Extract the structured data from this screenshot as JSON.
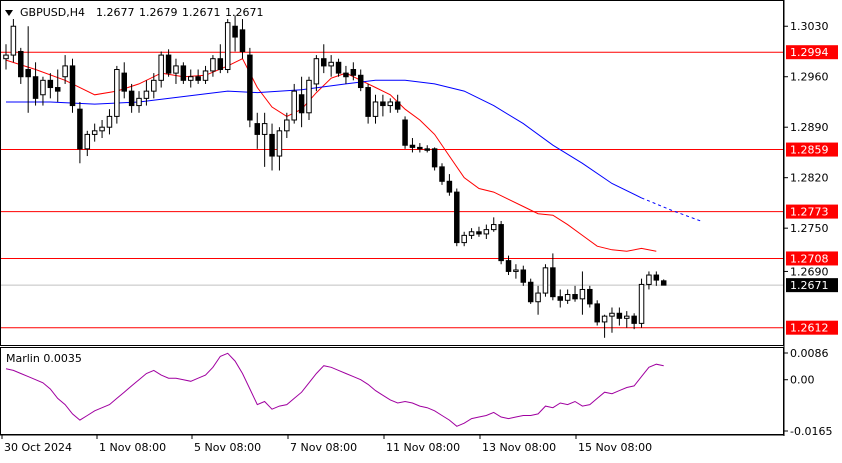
{
  "header": {
    "symbol": "GBPUSD,H4",
    "open": "1.2677",
    "high": "1.2679",
    "low": "1.2671",
    "close": "1.2671"
  },
  "indicator": {
    "name": "Marlin 0.0035"
  },
  "chart_data": {
    "type": "candlestick",
    "price_axis": {
      "range": [
        1.2588,
        1.3065
      ],
      "ticks": [
        "1.3030",
        "1.2960",
        "1.2890",
        "1.2820",
        "1.2750",
        "1.2690"
      ]
    },
    "levels": [
      {
        "value": "1.2994",
        "color": "#ff0000"
      },
      {
        "value": "1.2859",
        "color": "#ff0000"
      },
      {
        "value": "1.2773",
        "color": "#ff0000"
      },
      {
        "value": "1.2708",
        "color": "#ff0000"
      },
      {
        "value": "1.2612",
        "color": "#ff0000"
      }
    ],
    "current_price": "1.2671",
    "x_ticks": [
      "30 Oct 2024",
      "1 Nov 08:00",
      "5 Nov 08:00",
      "7 Nov 08:00",
      "11 Nov 08:00",
      "13 Nov 08:00",
      "15 Nov 08:00"
    ],
    "candles": [
      [
        1.2985,
        1.3005,
        1.297,
        1.299
      ],
      [
        1.299,
        1.304,
        1.298,
        1.303
      ],
      [
        1.2995,
        1.3,
        1.295,
        1.296
      ],
      [
        1.297,
        1.303,
        1.291,
        1.296
      ],
      [
        1.296,
        1.298,
        1.292,
        1.293
      ],
      [
        1.2935,
        1.296,
        1.292,
        1.2955
      ],
      [
        1.2955,
        1.2965,
        1.293,
        1.2945
      ],
      [
        1.2945,
        1.297,
        1.2925,
        1.294
      ],
      [
        1.296,
        1.299,
        1.295,
        1.2975
      ],
      [
        1.2975,
        1.2985,
        1.291,
        1.292
      ],
      [
        1.2915,
        1.2925,
        1.284,
        1.286
      ],
      [
        1.286,
        1.2885,
        1.285,
        1.288
      ],
      [
        1.288,
        1.2895,
        1.287,
        1.2885
      ],
      [
        1.2885,
        1.29,
        1.2875,
        1.289
      ],
      [
        1.289,
        1.2915,
        1.288,
        1.2905
      ],
      [
        1.2905,
        1.2975,
        1.2895,
        1.297
      ],
      [
        1.2965,
        1.298,
        1.293,
        1.294
      ],
      [
        1.294,
        1.295,
        1.291,
        1.292
      ],
      [
        1.292,
        1.294,
        1.291,
        1.293
      ],
      [
        1.293,
        1.2955,
        1.292,
        1.294
      ],
      [
        1.294,
        1.2965,
        1.293,
        1.2955
      ],
      [
        1.2955,
        1.2995,
        1.2945,
        1.299
      ],
      [
        1.299,
        1.2998,
        1.296,
        1.2965
      ],
      [
        1.2965,
        1.2985,
        1.295,
        1.2975
      ],
      [
        1.2975,
        1.298,
        1.295,
        1.2955
      ],
      [
        1.2955,
        1.297,
        1.2945,
        1.296
      ],
      [
        1.296,
        1.297,
        1.295,
        1.2955
      ],
      [
        1.2955,
        1.2975,
        1.295,
        1.2968
      ],
      [
        1.2968,
        1.299,
        1.296,
        1.2985
      ],
      [
        1.2985,
        1.3005,
        1.2965,
        1.297
      ],
      [
        1.297,
        1.304,
        1.2965,
        1.3035
      ],
      [
        1.303,
        1.3045,
        1.2995,
        1.3015
      ],
      [
        1.3025,
        1.304,
        1.2985,
        1.2995
      ],
      [
        1.299,
        1.3,
        1.289,
        1.29
      ],
      [
        1.2895,
        1.291,
        1.286,
        1.288
      ],
      [
        1.288,
        1.291,
        1.2835,
        1.2895
      ],
      [
        1.288,
        1.2895,
        1.283,
        1.285
      ],
      [
        1.285,
        1.289,
        1.283,
        1.2885
      ],
      [
        1.2885,
        1.291,
        1.2875,
        1.29
      ],
      [
        1.29,
        1.295,
        1.2895,
        1.294
      ],
      [
        1.2935,
        1.296,
        1.289,
        1.291
      ],
      [
        1.291,
        1.296,
        1.29,
        1.2955
      ],
      [
        1.295,
        1.299,
        1.294,
        1.2985
      ],
      [
        1.2985,
        1.3005,
        1.2965,
        1.2975
      ],
      [
        1.2975,
        1.299,
        1.296,
        1.298
      ],
      [
        1.298,
        1.2985,
        1.296,
        1.2965
      ],
      [
        1.2965,
        1.2975,
        1.295,
        1.296
      ],
      [
        1.297,
        1.298,
        1.2955,
        1.2962
      ],
      [
        1.2962,
        1.297,
        1.294,
        1.2945
      ],
      [
        1.2945,
        1.295,
        1.2895,
        1.2905
      ],
      [
        1.2905,
        1.2935,
        1.2895,
        1.2925
      ],
      [
        1.2925,
        1.2935,
        1.2905,
        1.292
      ],
      [
        1.292,
        1.293,
        1.291,
        1.2925
      ],
      [
        1.2925,
        1.2935,
        1.291,
        1.2915
      ],
      [
        1.29,
        1.2905,
        1.286,
        1.2865
      ],
      [
        1.2865,
        1.2875,
        1.2855,
        1.2862
      ],
      [
        1.2862,
        1.2868,
        1.2855,
        1.286
      ],
      [
        1.286,
        1.2865,
        1.2855,
        1.2858
      ],
      [
        1.286,
        1.2862,
        1.283,
        1.2835
      ],
      [
        1.2835,
        1.284,
        1.281,
        1.2815
      ],
      [
        1.2815,
        1.2825,
        1.2795,
        1.28
      ],
      [
        1.28,
        1.2805,
        1.2725,
        1.273
      ],
      [
        1.273,
        1.2745,
        1.2725,
        1.274
      ],
      [
        1.274,
        1.275,
        1.2735,
        1.2745
      ],
      [
        1.2745,
        1.2752,
        1.2738,
        1.2742
      ],
      [
        1.2742,
        1.2755,
        1.2735,
        1.2748
      ],
      [
        1.2748,
        1.2765,
        1.2745,
        1.2755
      ],
      [
        1.2755,
        1.276,
        1.27,
        1.2705
      ],
      [
        1.2705,
        1.2712,
        1.2685,
        1.269
      ],
      [
        1.269,
        1.27,
        1.268,
        1.2692
      ],
      [
        1.2692,
        1.2698,
        1.267,
        1.2675
      ],
      [
        1.2675,
        1.268,
        1.2645,
        1.2648
      ],
      [
        1.2648,
        1.267,
        1.263,
        1.266
      ],
      [
        1.266,
        1.27,
        1.2655,
        1.2695
      ],
      [
        1.2695,
        1.2715,
        1.265,
        1.2655
      ],
      [
        1.2655,
        1.2665,
        1.264,
        1.265
      ],
      [
        1.265,
        1.2665,
        1.2645,
        1.2658
      ],
      [
        1.2658,
        1.267,
        1.2648,
        1.2652
      ],
      [
        1.2652,
        1.269,
        1.263,
        1.2665
      ],
      [
        1.2665,
        1.267,
        1.264,
        1.2645
      ],
      [
        1.2645,
        1.265,
        1.2615,
        1.262
      ],
      [
        1.262,
        1.263,
        1.2598,
        1.2628
      ],
      [
        1.2628,
        1.264,
        1.2605,
        1.2632
      ],
      [
        1.2632,
        1.264,
        1.2615,
        1.2625
      ],
      [
        1.2625,
        1.2635,
        1.2612,
        1.2628
      ],
      [
        1.2628,
        1.2632,
        1.261,
        1.2618
      ],
      [
        1.2618,
        1.268,
        1.2612,
        1.2672
      ],
      [
        1.2672,
        1.269,
        1.2665,
        1.2685
      ],
      [
        1.2685,
        1.269,
        1.267,
        1.2678
      ],
      [
        1.2677,
        1.2679,
        1.2671,
        1.2671
      ]
    ],
    "ma_fast_color": "#ff0000",
    "ma_slow_color": "#0000ff",
    "ma_fast": [
      [
        0,
        1.2983
      ],
      [
        4,
        1.297
      ],
      [
        8,
        1.2955
      ],
      [
        12,
        1.2935
      ],
      [
        15,
        1.294
      ],
      [
        18,
        1.295
      ],
      [
        21,
        1.2965
      ],
      [
        24,
        1.296
      ],
      [
        27,
        1.2962
      ],
      [
        30,
        1.2975
      ],
      [
        32,
        1.2985
      ],
      [
        34,
        1.2945
      ],
      [
        36,
        1.2918
      ],
      [
        38,
        1.2905
      ],
      [
        40,
        1.2915
      ],
      [
        42,
        1.2938
      ],
      [
        44,
        1.2958
      ],
      [
        46,
        1.2965
      ],
      [
        48,
        1.2955
      ],
      [
        50,
        1.2945
      ],
      [
        52,
        1.2935
      ],
      [
        54,
        1.2915
      ],
      [
        56,
        1.29
      ],
      [
        58,
        1.288
      ],
      [
        60,
        1.285
      ],
      [
        62,
        1.282
      ],
      [
        64,
        1.2805
      ],
      [
        66,
        1.28
      ],
      [
        68,
        1.279
      ],
      [
        70,
        1.278
      ],
      [
        72,
        1.277
      ],
      [
        74,
        1.2768
      ],
      [
        76,
        1.2755
      ],
      [
        78,
        1.274
      ],
      [
        80,
        1.2725
      ],
      [
        82,
        1.272
      ],
      [
        84,
        1.2718
      ],
      [
        86,
        1.2722
      ],
      [
        88,
        1.2718
      ]
    ],
    "ma_slow": [
      [
        0,
        1.2925
      ],
      [
        6,
        1.2925
      ],
      [
        12,
        1.2922
      ],
      [
        18,
        1.2925
      ],
      [
        22,
        1.293
      ],
      [
        26,
        1.2935
      ],
      [
        30,
        1.294
      ],
      [
        34,
        1.2938
      ],
      [
        40,
        1.2942
      ],
      [
        46,
        1.295
      ],
      [
        50,
        1.2955
      ],
      [
        54,
        1.2955
      ],
      [
        58,
        1.295
      ],
      [
        62,
        1.294
      ],
      [
        66,
        1.292
      ],
      [
        70,
        1.2895
      ],
      [
        74,
        1.2865
      ],
      [
        78,
        1.284
      ],
      [
        82,
        1.2812
      ],
      [
        86,
        1.2792
      ],
      [
        90,
        1.2775
      ],
      [
        94,
        1.276
      ]
    ],
    "ma_slow_projected_from_index": 86,
    "oscillator": {
      "name": "Marlin 0.0035",
      "range": [
        -0.0165,
        0.0086
      ],
      "ticks": [
        "0.0086",
        "0.00",
        "-0.0165"
      ],
      "color": "#a000a0",
      "values": [
        0.0035,
        0.003,
        0.002,
        0.001,
        0.0,
        -0.001,
        -0.003,
        -0.006,
        -0.008,
        -0.011,
        -0.013,
        -0.0115,
        -0.01,
        -0.009,
        -0.008,
        -0.006,
        -0.004,
        -0.002,
        0.0,
        0.002,
        0.003,
        0.0015,
        0.0005,
        0.0005,
        0.0,
        -0.0005,
        0.0005,
        0.0015,
        0.004,
        0.0075,
        0.0085,
        0.006,
        0.002,
        -0.003,
        -0.008,
        -0.007,
        -0.0095,
        -0.0085,
        -0.008,
        -0.006,
        -0.004,
        -0.001,
        0.002,
        0.0045,
        0.004,
        0.003,
        0.002,
        0.001,
        0.0,
        -0.0015,
        -0.0035,
        -0.005,
        -0.0065,
        -0.0075,
        -0.007,
        -0.0075,
        -0.0085,
        -0.009,
        -0.01,
        -0.0115,
        -0.013,
        -0.015,
        -0.014,
        -0.0125,
        -0.012,
        -0.0115,
        -0.0105,
        -0.012,
        -0.0125,
        -0.012,
        -0.0115,
        -0.0115,
        -0.011,
        -0.0085,
        -0.009,
        -0.0075,
        -0.008,
        -0.007,
        -0.0085,
        -0.008,
        -0.006,
        -0.004,
        -0.0045,
        -0.0035,
        -0.0025,
        -0.002,
        0.001,
        0.004,
        0.005,
        0.0045
      ]
    }
  }
}
